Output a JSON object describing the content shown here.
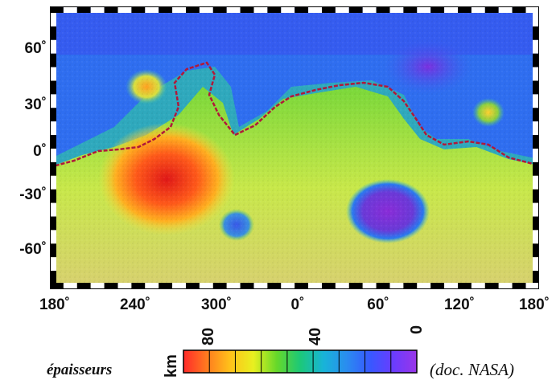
{
  "map": {
    "lat_labels": [
      "60˚",
      "30˚",
      "0˚",
      "-30˚",
      "-60˚"
    ],
    "lon_labels": [
      "180˚",
      "240˚",
      "300˚",
      "0˚",
      "60˚",
      "120˚",
      "180˚"
    ]
  },
  "legend": {
    "unit": "km",
    "ticks": [
      "80",
      "40",
      "0"
    ],
    "colors": [
      "#ff2a2a",
      "#ff7a1f",
      "#ffc21a",
      "#e8f020",
      "#66d82a",
      "#1cc878",
      "#18b4d8",
      "#2a8cf0",
      "#3858ff",
      "#6a3cff",
      "#9a36e8"
    ]
  },
  "caption": {
    "left": "épaisseurs",
    "right": "(doc. NASA)"
  }
}
